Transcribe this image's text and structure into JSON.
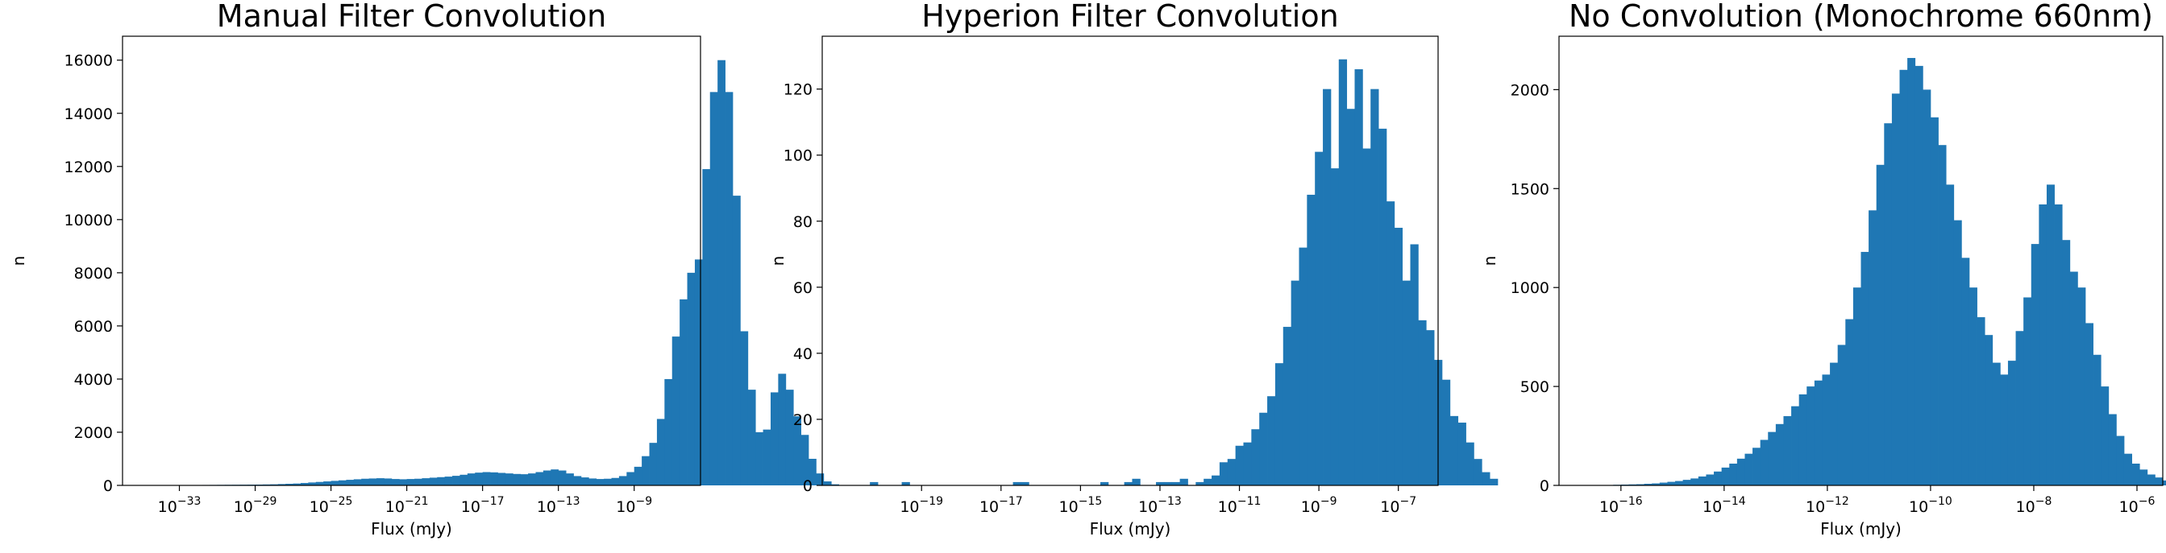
{
  "chart_data": [
    {
      "type": "bar",
      "title": "Manual Filter Convolution",
      "xlabel": "Flux (mJy)",
      "ylabel": "n",
      "xscale": "log",
      "xlim_log10": [
        -36.0,
        -5.5
      ],
      "ylim": [
        0,
        16900
      ],
      "xticks": [
        {
          "log10": -33,
          "label": "10",
          "exp": "−33"
        },
        {
          "log10": -29,
          "label": "10",
          "exp": "−29"
        },
        {
          "log10": -25,
          "label": "10",
          "exp": "−25"
        },
        {
          "log10": -21,
          "label": "10",
          "exp": "−21"
        },
        {
          "log10": -17,
          "label": "10",
          "exp": "−17"
        },
        {
          "log10": -13,
          "label": "10",
          "exp": "−13"
        },
        {
          "log10": -9,
          "label": "10",
          "exp": "−9"
        }
      ],
      "yticks": [
        {
          "value": 0,
          "label": "0"
        },
        {
          "value": 2000,
          "label": "2000"
        },
        {
          "value": 4000,
          "label": "4000"
        },
        {
          "value": 6000,
          "label": "6000"
        },
        {
          "value": 8000,
          "label": "8000"
        },
        {
          "value": 10000,
          "label": "10000"
        },
        {
          "value": 12000,
          "label": "12000"
        },
        {
          "value": 14000,
          "label": "14000"
        },
        {
          "value": 16000,
          "label": "16000"
        }
      ],
      "color": "#1f77b4",
      "bin_start_log10": -34.6,
      "bin_width_log10": 0.4,
      "values": [
        2,
        4,
        6,
        8,
        10,
        12,
        14,
        16,
        18,
        20,
        22,
        24,
        26,
        28,
        30,
        35,
        40,
        50,
        60,
        70,
        90,
        110,
        130,
        150,
        170,
        190,
        210,
        230,
        250,
        260,
        270,
        260,
        240,
        230,
        240,
        250,
        270,
        290,
        310,
        330,
        360,
        400,
        450,
        480,
        500,
        490,
        470,
        450,
        430,
        420,
        450,
        500,
        560,
        600,
        560,
        450,
        350,
        300,
        260,
        240,
        250,
        280,
        350,
        500,
        700,
        1100,
        1600,
        2500,
        4000,
        5600,
        7000,
        8000,
        8500,
        11900,
        14800,
        16000,
        14800,
        10900,
        5800,
        3600,
        2000,
        2100,
        3500,
        4200,
        3600,
        2600,
        1900,
        1000,
        450,
        150,
        40
      ]
    },
    {
      "type": "bar",
      "title": "Hyperion Filter Convolution",
      "xlabel": "Flux (mJy)",
      "ylabel": "n",
      "xscale": "log",
      "xlim_log10": [
        -21.5,
        -6.0
      ],
      "ylim": [
        0,
        136
      ],
      "xticks": [
        {
          "log10": -19,
          "label": "10",
          "exp": "−19"
        },
        {
          "log10": -17,
          "label": "10",
          "exp": "−17"
        },
        {
          "log10": -15,
          "label": "10",
          "exp": "−15"
        },
        {
          "log10": -13,
          "label": "10",
          "exp": "−13"
        },
        {
          "log10": -11,
          "label": "10",
          "exp": "−11"
        },
        {
          "log10": -9,
          "label": "10",
          "exp": "−9"
        },
        {
          "log10": -7,
          "label": "10",
          "exp": "−7"
        }
      ],
      "yticks": [
        {
          "value": 0,
          "label": "0"
        },
        {
          "value": 20,
          "label": "20"
        },
        {
          "value": 40,
          "label": "40"
        },
        {
          "value": 60,
          "label": "60"
        },
        {
          "value": 80,
          "label": "80"
        },
        {
          "value": 100,
          "label": "100"
        },
        {
          "value": 120,
          "label": "120"
        }
      ],
      "color": "#1f77b4",
      "bin_start_log10": -20.5,
      "bin_width_log10": 0.2,
      "values": [
        0,
        1,
        0,
        0,
        0,
        1,
        0,
        0,
        0,
        0,
        0,
        0,
        0,
        0,
        0,
        0,
        0,
        0,
        0,
        1,
        1,
        0,
        0,
        0,
        0,
        0,
        0,
        0,
        0,
        0,
        1,
        0,
        0,
        1,
        2,
        0,
        0,
        1,
        1,
        1,
        2,
        0,
        1,
        2,
        3,
        7,
        8,
        12,
        13,
        17,
        22,
        27,
        37,
        48,
        62,
        72,
        88,
        101,
        120,
        96,
        129,
        114,
        126,
        102,
        120,
        108,
        86,
        78,
        62,
        73,
        50,
        47,
        38,
        32,
        21,
        19,
        13,
        8,
        4,
        2
      ],
      "values_note": "fine-grained bins taken in order; tail values near 1e-7"
    },
    {
      "type": "bar",
      "title": "No Convolution (Monochrome 660nm)",
      "xlabel": "Flux (mJy)",
      "ylabel": "n",
      "xscale": "log",
      "xlim_log10": [
        -17.2,
        -5.5
      ],
      "ylim": [
        0,
        2270
      ],
      "xticks": [
        {
          "log10": -16,
          "label": "10",
          "exp": "−16"
        },
        {
          "log10": -14,
          "label": "10",
          "exp": "−14"
        },
        {
          "log10": -12,
          "label": "10",
          "exp": "−12"
        },
        {
          "log10": -10,
          "label": "10",
          "exp": "−10"
        },
        {
          "log10": -8,
          "label": "10",
          "exp": "−8"
        },
        {
          "log10": -6,
          "label": "10",
          "exp": "−6"
        }
      ],
      "yticks": [
        {
          "value": 0,
          "label": "0"
        },
        {
          "value": 500,
          "label": "500"
        },
        {
          "value": 1000,
          "label": "1000"
        },
        {
          "value": 1500,
          "label": "1500"
        },
        {
          "value": 2000,
          "label": "2000"
        }
      ],
      "color": "#1f77b4",
      "bin_start_log10": -16.3,
      "bin_width_log10": 0.15,
      "values": [
        2,
        3,
        4,
        5,
        6,
        8,
        10,
        14,
        18,
        22,
        28,
        35,
        45,
        55,
        70,
        90,
        110,
        135,
        160,
        190,
        230,
        270,
        310,
        350,
        400,
        460,
        500,
        530,
        560,
        620,
        710,
        840,
        1000,
        1180,
        1390,
        1620,
        1830,
        1980,
        2100,
        2160,
        2120,
        2000,
        1860,
        1720,
        1520,
        1340,
        1150,
        1000,
        850,
        760,
        620,
        560,
        630,
        780,
        950,
        1220,
        1420,
        1520,
        1420,
        1240,
        1080,
        1000,
        820,
        660,
        500,
        360,
        250,
        160,
        110,
        80,
        55,
        40,
        25,
        15,
        8,
        4,
        2
      ]
    }
  ]
}
